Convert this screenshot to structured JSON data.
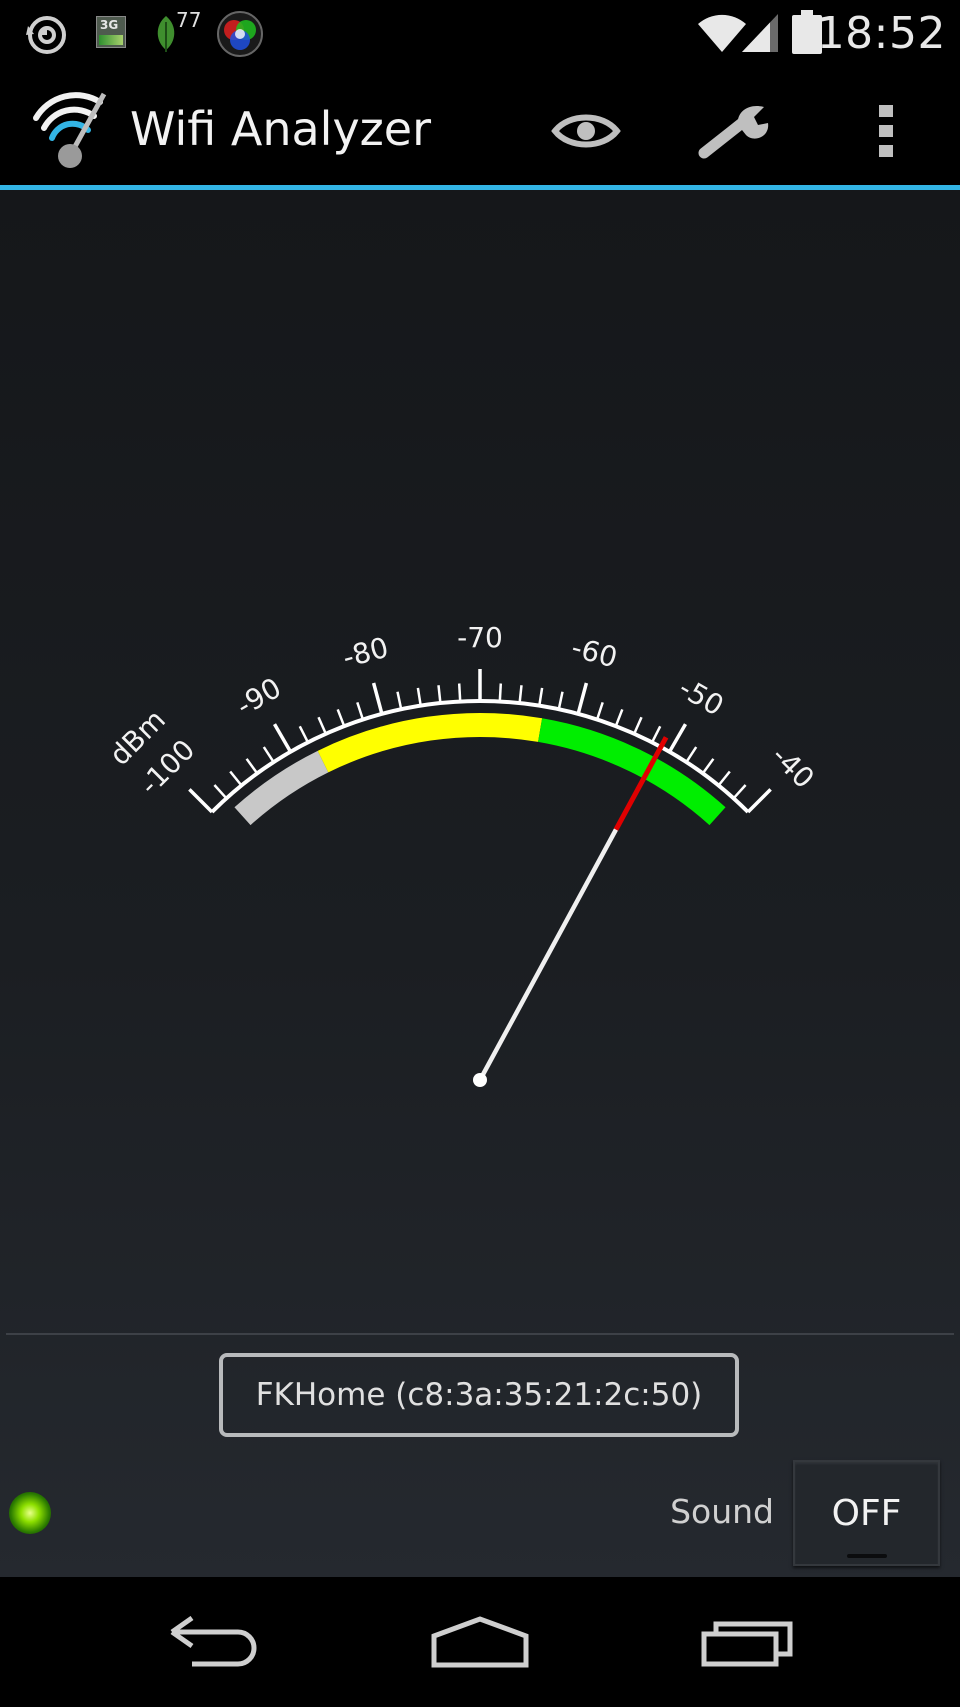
{
  "status_bar": {
    "time": "18:52",
    "leaf_badge": "77",
    "network_icon_label": "3G",
    "icons": [
      "sync-icon",
      "network-3g-icon",
      "leaf-icon",
      "color-wheel-icon",
      "wifi-signal-icon",
      "cell-signal-icon",
      "battery-icon"
    ]
  },
  "action_bar": {
    "title": "Wifi Analyzer",
    "icons": [
      "wifi-analyzer-logo",
      "eye-icon",
      "wrench-icon",
      "overflow-menu-icon"
    ]
  },
  "gauge": {
    "unit": "dBm",
    "min": -100,
    "max": -40,
    "tick_labels": [
      "-100",
      "-90",
      "-80",
      "-70",
      "-60",
      "-50",
      "-40"
    ],
    "needle_value": -51,
    "zones": [
      {
        "from": -98,
        "to": -87.5,
        "color": "#c8c8c8"
      },
      {
        "from": -87.5,
        "to": -63.5,
        "color": "#ffff00"
      },
      {
        "from": -63.5,
        "to": -42,
        "color": "#00ee00"
      }
    ],
    "needle_color": "#f0f0f0",
    "needle_tip_color": "#e00000",
    "scale_color": "#ffffff"
  },
  "network": {
    "label": "FKHome (c8:3a:35:21:2c:50)"
  },
  "sound": {
    "label": "Sound",
    "toggle_value": "OFF"
  },
  "nav_bar": {
    "icons": [
      "back-icon",
      "home-icon",
      "recent-apps-icon"
    ]
  }
}
